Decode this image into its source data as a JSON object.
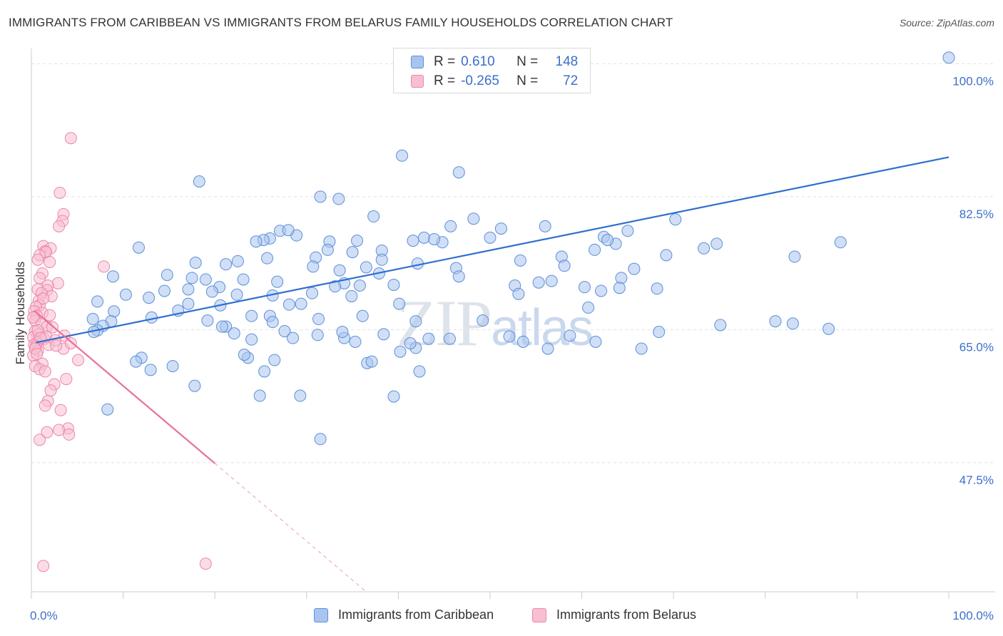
{
  "title": "IMMIGRANTS FROM CARIBBEAN VS IMMIGRANTS FROM BELARUS FAMILY HOUSEHOLDS CORRELATION CHART",
  "source": "Source: ZipAtlas.com",
  "watermark": {
    "zip": "ZIP",
    "atlas": "atlas"
  },
  "colors": {
    "blue_fill": "#a9c5ef",
    "blue_stroke": "#5b8fd8",
    "blue_line": "#2f6fcf",
    "pink_fill": "#f7bfd1",
    "pink_stroke": "#ec86a8",
    "pink_line": "#e8709a",
    "axis_label": "#3b6fcb",
    "grid": "#e0e0e0"
  },
  "legend": {
    "rows": [
      {
        "r_label": "R =",
        "r_value": "0.610",
        "n_label": "N =",
        "n_value": "148"
      },
      {
        "r_label": "R =",
        "r_value": "-0.265",
        "n_label": "N =",
        "n_value": "72"
      }
    ]
  },
  "bottom_legend": {
    "series1": "Immigrants from Caribbean",
    "series2": "Immigrants from Belarus"
  },
  "chart_data": {
    "type": "scatter",
    "title": "IMMIGRANTS FROM CARIBBEAN VS IMMIGRANTS FROM BELARUS FAMILY HOUSEHOLDS CORRELATION CHART",
    "xlabel": "",
    "ylabel": "Family Households",
    "xlim": [
      0,
      100
    ],
    "ylim": [
      30.5,
      102
    ],
    "x_tick_labels": [
      "0.0%",
      "100.0%"
    ],
    "y_ticks": [
      47.5,
      65.0,
      82.5,
      100.0
    ],
    "y_tick_labels": [
      "47.5%",
      "65.0%",
      "82.5%",
      "100.0%"
    ],
    "series": [
      {
        "name": "Immigrants from Caribbean",
        "color": "blue",
        "trend": {
          "x": [
            0.5,
            100
          ],
          "y": [
            63.3,
            87.7
          ],
          "dashed_extension": false
        },
        "points": [
          [
            100,
            100.8
          ],
          [
            40.4,
            87.9
          ],
          [
            46.6,
            85.7
          ],
          [
            18.3,
            84.5
          ],
          [
            31.5,
            82.5
          ],
          [
            33.5,
            82.2
          ],
          [
            37.3,
            79.9
          ],
          [
            48.2,
            79.6
          ],
          [
            45.7,
            78.6
          ],
          [
            51.2,
            78.3
          ],
          [
            56.0,
            78.6
          ],
          [
            27.1,
            78.0
          ],
          [
            26.0,
            77.0
          ],
          [
            28.9,
            77.4
          ],
          [
            28.0,
            78.1
          ],
          [
            42.8,
            77.1
          ],
          [
            41.6,
            76.7
          ],
          [
            32.5,
            76.6
          ],
          [
            44.8,
            76.5
          ],
          [
            43.9,
            76.9
          ],
          [
            25.3,
            76.8
          ],
          [
            24.5,
            76.6
          ],
          [
            35.5,
            76.7
          ],
          [
            11.7,
            75.8
          ],
          [
            32.3,
            75.5
          ],
          [
            35.0,
            75.2
          ],
          [
            38.2,
            75.4
          ],
          [
            50.0,
            77.1
          ],
          [
            31.0,
            74.5
          ],
          [
            38.2,
            74.2
          ],
          [
            25.7,
            74.4
          ],
          [
            22.5,
            74.0
          ],
          [
            17.9,
            73.8
          ],
          [
            21.2,
            73.6
          ],
          [
            30.7,
            73.3
          ],
          [
            36.5,
            73.2
          ],
          [
            46.3,
            73.1
          ],
          [
            33.6,
            72.8
          ],
          [
            37.9,
            72.4
          ],
          [
            42.1,
            73.7
          ],
          [
            14.8,
            72.2
          ],
          [
            8.9,
            72.0
          ],
          [
            17.5,
            71.8
          ],
          [
            19.0,
            71.6
          ],
          [
            23.1,
            71.6
          ],
          [
            26.8,
            71.3
          ],
          [
            34.1,
            71.1
          ],
          [
            39.5,
            70.9
          ],
          [
            33.1,
            70.7
          ],
          [
            35.8,
            70.8
          ],
          [
            20.5,
            70.6
          ],
          [
            17.1,
            70.3
          ],
          [
            14.5,
            70.1
          ],
          [
            19.7,
            70.0
          ],
          [
            30.6,
            69.8
          ],
          [
            10.3,
            69.6
          ],
          [
            22.4,
            69.6
          ],
          [
            26.3,
            69.5
          ],
          [
            34.9,
            69.4
          ],
          [
            12.8,
            69.2
          ],
          [
            7.2,
            68.7
          ],
          [
            17.1,
            68.4
          ],
          [
            28.1,
            68.3
          ],
          [
            20.6,
            68.2
          ],
          [
            29.4,
            68.4
          ],
          [
            40.1,
            68.4
          ],
          [
            9.0,
            67.4
          ],
          [
            16.0,
            67.5
          ],
          [
            24.0,
            66.8
          ],
          [
            26.0,
            66.8
          ],
          [
            36.1,
            66.8
          ],
          [
            31.3,
            66.4
          ],
          [
            8.7,
            66.1
          ],
          [
            41.9,
            66.1
          ],
          [
            6.7,
            66.4
          ],
          [
            13.1,
            66.6
          ],
          [
            19.2,
            66.2
          ],
          [
            26.3,
            66.0
          ],
          [
            21.2,
            65.4
          ],
          [
            20.8,
            65.4
          ],
          [
            27.6,
            64.8
          ],
          [
            7.8,
            65.5
          ],
          [
            7.2,
            64.9
          ],
          [
            31.2,
            64.3
          ],
          [
            6.8,
            64.7
          ],
          [
            22.1,
            64.5
          ],
          [
            24.0,
            63.7
          ],
          [
            28.5,
            63.9
          ],
          [
            34.1,
            63.9
          ],
          [
            33.9,
            64.7
          ],
          [
            38.4,
            64.4
          ],
          [
            49.2,
            66.2
          ],
          [
            60.7,
            67.9
          ],
          [
            52.1,
            64.1
          ],
          [
            56.3,
            62.5
          ],
          [
            66.5,
            62.5
          ],
          [
            68.4,
            64.7
          ],
          [
            75.1,
            65.6
          ],
          [
            81.1,
            66.1
          ],
          [
            83.0,
            65.8
          ],
          [
            86.9,
            65.1
          ],
          [
            68.2,
            70.4
          ],
          [
            64.3,
            71.8
          ],
          [
            53.3,
            74.1
          ],
          [
            57.8,
            74.6
          ],
          [
            61.4,
            75.5
          ],
          [
            63.7,
            76.3
          ],
          [
            62.4,
            77.2
          ],
          [
            65.0,
            78.0
          ],
          [
            69.2,
            74.8
          ],
          [
            65.7,
            73.0
          ],
          [
            83.2,
            74.6
          ],
          [
            88.2,
            76.5
          ],
          [
            73.3,
            75.7
          ],
          [
            74.7,
            76.3
          ],
          [
            70.2,
            79.5
          ],
          [
            62.8,
            76.8
          ],
          [
            58.1,
            73.4
          ],
          [
            52.7,
            70.8
          ],
          [
            53.1,
            69.7
          ],
          [
            46.6,
            72.0
          ],
          [
            55.3,
            71.2
          ],
          [
            56.7,
            71.4
          ],
          [
            60.3,
            70.6
          ],
          [
            62.1,
            70.1
          ],
          [
            64.1,
            70.5
          ],
          [
            41.9,
            62.6
          ],
          [
            43.3,
            63.8
          ],
          [
            40.2,
            62.1
          ],
          [
            41.3,
            63.2
          ],
          [
            45.6,
            63.8
          ],
          [
            35.3,
            63.4
          ],
          [
            12.0,
            61.3
          ],
          [
            11.4,
            60.8
          ],
          [
            23.6,
            61.3
          ],
          [
            23.2,
            61.7
          ],
          [
            26.5,
            61.0
          ],
          [
            36.6,
            60.6
          ],
          [
            37.1,
            60.8
          ],
          [
            15.4,
            60.2
          ],
          [
            13.0,
            59.7
          ],
          [
            25.4,
            59.5
          ],
          [
            42.3,
            59.5
          ],
          [
            17.8,
            57.6
          ],
          [
            24.9,
            56.3
          ],
          [
            29.3,
            56.3
          ],
          [
            39.5,
            56.2
          ],
          [
            8.3,
            54.5
          ],
          [
            31.5,
            50.6
          ],
          [
            61.5,
            63.4
          ],
          [
            53.6,
            63.4
          ],
          [
            58.7,
            64.2
          ]
        ]
      },
      {
        "name": "Immigrants from Belarus",
        "color": "pink",
        "trend": {
          "x": [
            0.3,
            20.0
          ],
          "y": [
            67.5,
            47.4
          ],
          "dashed_extension_to": [
            36.5,
            30.5
          ]
        },
        "points": [
          [
            4.3,
            90.2
          ],
          [
            3.1,
            83.0
          ],
          [
            3.5,
            80.2
          ],
          [
            3.4,
            79.3
          ],
          [
            3.0,
            78.6
          ],
          [
            1.3,
            76.0
          ],
          [
            2.1,
            75.7
          ],
          [
            1.5,
            75.3
          ],
          [
            1.6,
            75.2
          ],
          [
            0.9,
            74.8
          ],
          [
            0.7,
            74.2
          ],
          [
            2.0,
            73.9
          ],
          [
            7.9,
            73.3
          ],
          [
            1.2,
            72.4
          ],
          [
            0.9,
            71.8
          ],
          [
            2.9,
            71.1
          ],
          [
            1.8,
            70.8
          ],
          [
            1.7,
            70.2
          ],
          [
            0.7,
            70.3
          ],
          [
            1.1,
            69.8
          ],
          [
            2.2,
            69.4
          ],
          [
            0.8,
            68.8
          ],
          [
            0.9,
            68.2
          ],
          [
            0.5,
            68.0
          ],
          [
            0.3,
            67.4
          ],
          [
            1.2,
            67.2
          ],
          [
            0.6,
            66.8
          ],
          [
            0.4,
            66.2
          ],
          [
            1.1,
            65.8
          ],
          [
            1.7,
            65.4
          ],
          [
            2.3,
            65.3
          ],
          [
            0.4,
            64.8
          ],
          [
            0.8,
            64.4
          ],
          [
            0.2,
            64.0
          ],
          [
            1.4,
            63.8
          ],
          [
            0.6,
            63.3
          ],
          [
            0.3,
            63.0
          ],
          [
            1.9,
            63.0
          ],
          [
            0.5,
            62.8
          ],
          [
            3.5,
            62.5
          ],
          [
            0.7,
            62.2
          ],
          [
            0.2,
            61.6
          ],
          [
            5.1,
            61.0
          ],
          [
            1.2,
            60.5
          ],
          [
            0.4,
            60.2
          ],
          [
            0.9,
            59.8
          ],
          [
            1.5,
            59.5
          ],
          [
            3.8,
            58.5
          ],
          [
            2.5,
            57.8
          ],
          [
            2.1,
            57.0
          ],
          [
            1.8,
            55.6
          ],
          [
            1.5,
            55.0
          ],
          [
            3.2,
            54.4
          ],
          [
            4.0,
            52.0
          ],
          [
            3.0,
            51.8
          ],
          [
            1.7,
            51.5
          ],
          [
            4.1,
            51.2
          ],
          [
            0.9,
            50.5
          ],
          [
            1.3,
            33.9
          ],
          [
            19.0,
            34.2
          ],
          [
            0.4,
            62.5
          ],
          [
            0.7,
            64.9
          ],
          [
            1.6,
            64.1
          ],
          [
            2.6,
            63.6
          ],
          [
            3.6,
            64.2
          ],
          [
            0.2,
            66.6
          ],
          [
            4.3,
            63.2
          ],
          [
            2.7,
            62.9
          ],
          [
            1.0,
            63.9
          ],
          [
            0.6,
            61.8
          ],
          [
            2.0,
            66.9
          ],
          [
            1.3,
            69.1
          ]
        ]
      }
    ]
  }
}
